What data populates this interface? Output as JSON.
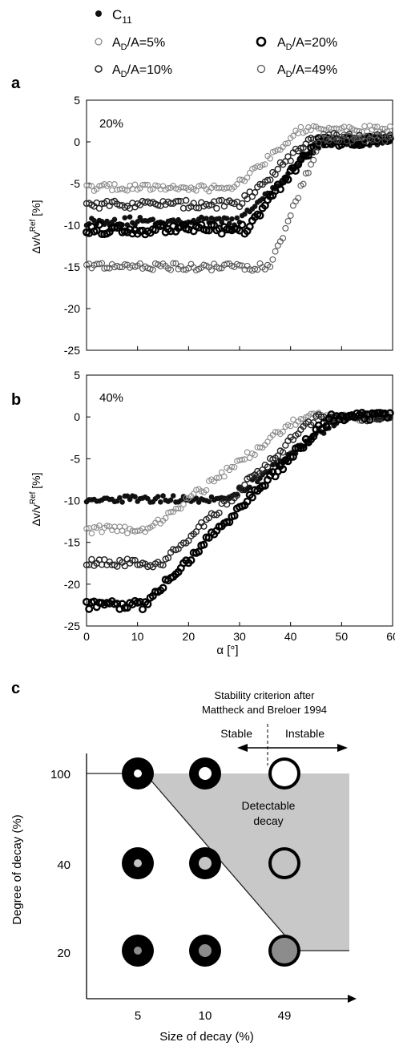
{
  "legend": {
    "entries": [
      {
        "series": "C11",
        "label_main": "C",
        "label_sub": "11",
        "label_rest": "",
        "marker": "filled"
      },
      {
        "series": "AD5",
        "label_main": "A",
        "label_sub": "D",
        "label_rest": "/A=5%",
        "marker": "thin-gray"
      },
      {
        "series": "AD20",
        "label_main": "A",
        "label_sub": "D",
        "label_rest": "/A=20%",
        "marker": "thick-black"
      },
      {
        "series": "AD10",
        "label_main": "A",
        "label_sub": "D",
        "label_rest": "/A=10%",
        "marker": "thin-black"
      },
      {
        "series": "AD49",
        "label_main": "A",
        "label_sub": "D",
        "label_rest": "/A=49%",
        "marker": "thin-darkgray"
      }
    ]
  },
  "chart_data": [
    {
      "panel": "a",
      "type": "scatter",
      "panel_label": "a",
      "annotation": "20%",
      "ylabel_main": "Δv/v",
      "ylabel_sup": "Ref",
      "ylabel_unit": " [%]",
      "xlabel": "",
      "xlim": [
        0,
        60
      ],
      "ylim": [
        -25,
        5
      ],
      "yticks": [
        "5",
        "0",
        "-5",
        "-10",
        "-15",
        "-20",
        "-25"
      ],
      "xticks": [],
      "series": [
        {
          "key": "C11",
          "levels": {
            "plateau": -9.5,
            "x1": 30,
            "x2": 46,
            "final": 0,
            "jitter": 0.5
          }
        },
        {
          "key": "AD5",
          "levels": {
            "plateau": -5.5,
            "x1": 29,
            "x2": 42,
            "final": 1.5,
            "jitter": 0.45
          }
        },
        {
          "key": "AD10",
          "levels": {
            "plateau": -7.5,
            "x1": 30,
            "x2": 44,
            "final": 0.5,
            "jitter": 0.5
          }
        },
        {
          "key": "AD20",
          "levels": {
            "plateau": -10.5,
            "x1": 31,
            "x2": 45,
            "final": 0,
            "jitter": 0.6
          }
        },
        {
          "key": "AD49",
          "levels": {
            "plateau": -15,
            "x1": 36,
            "x2": 46,
            "final": 0.5,
            "jitter": 0.45
          }
        }
      ]
    },
    {
      "panel": "b",
      "type": "scatter",
      "panel_label": "b",
      "annotation": "40%",
      "ylabel_main": "Δv/v",
      "ylabel_sup": "Ref",
      "ylabel_unit": " [%]",
      "xlabel": "α [°]",
      "xlim": [
        0,
        60
      ],
      "ylim": [
        -25,
        5
      ],
      "yticks": [
        "5",
        "0",
        "-5",
        "-10",
        "-15",
        "-20",
        "-25"
      ],
      "xticks": [
        "0",
        "10",
        "20",
        "30",
        "40",
        "50",
        "60"
      ],
      "series": [
        {
          "key": "C11",
          "levels": {
            "plateau": -9.8,
            "x1": 28,
            "x2": 50,
            "final": 0,
            "jitter": 0.4
          }
        },
        {
          "key": "AD5",
          "levels": {
            "plateau": -13.5,
            "x1": 12,
            "x2": 42,
            "final": 0,
            "jitter": 0.5
          }
        },
        {
          "key": "AD10",
          "levels": {
            "plateau": -17.5,
            "x1": 15,
            "x2": 45,
            "final": 0,
            "jitter": 0.5
          }
        },
        {
          "key": "AD20",
          "levels": {
            "plateau": -22.5,
            "x1": 11,
            "x2": 48,
            "final": 0,
            "jitter": 0.5
          }
        }
      ]
    },
    {
      "panel": "c",
      "type": "diagram",
      "panel_label": "c",
      "title_lines": [
        "Stability criterion after",
        "Mattheck and Breloer 1994"
      ],
      "stable_label": "Stable",
      "instable_label": "Instable",
      "region_label_lines": [
        "Detectable",
        "decay"
      ],
      "xlabel": "Size of decay (%)",
      "ylabel": "Degree of decay (%)",
      "x_categories": [
        "5",
        "10",
        "49"
      ],
      "y_categories": [
        "100",
        "40",
        "20"
      ],
      "rings": [
        {
          "size": 5,
          "degree": 100,
          "fill": "white"
        },
        {
          "size": 10,
          "degree": 100,
          "fill": "white"
        },
        {
          "size": 49,
          "degree": 100,
          "fill": "white"
        },
        {
          "size": 5,
          "degree": 40,
          "fill": "lightgray"
        },
        {
          "size": 10,
          "degree": 40,
          "fill": "lightgray"
        },
        {
          "size": 49,
          "degree": 40,
          "fill": "lightgray"
        },
        {
          "size": 5,
          "degree": 20,
          "fill": "gray"
        },
        {
          "size": 10,
          "degree": 20,
          "fill": "gray"
        },
        {
          "size": 49,
          "degree": 20,
          "fill": "gray"
        }
      ]
    }
  ],
  "colors": {
    "filled": "#111111",
    "thin_gray": "#8a8a8a",
    "thin_black": "#222222",
    "thick_black": "#000000",
    "thin_darkgray": "#555555",
    "region": "#c8c8c8",
    "fill_white": "#ffffff",
    "fill_lightgray": "#c4c4c4",
    "fill_gray": "#8c8c8c"
  }
}
